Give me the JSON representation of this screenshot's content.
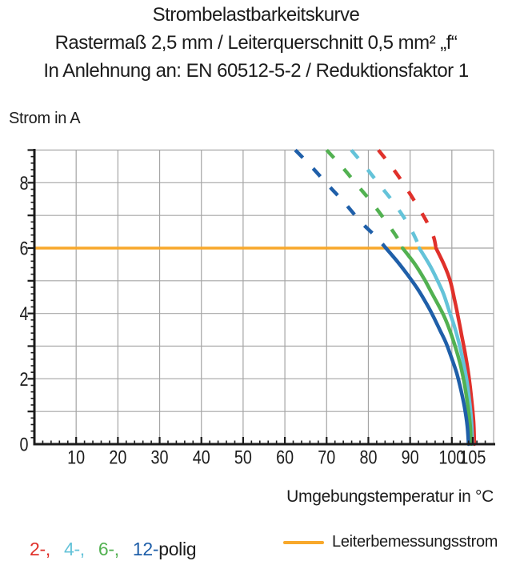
{
  "header": {
    "line1": "Strombelastbarkeitskurve",
    "line2": "Rastermaß 2,5 mm / Leiterquerschnitt 0,5 mm² „f“",
    "line3": "In Anlehnung an: EN 60512-5-2 / Reduktionsfaktor 1"
  },
  "chart_data": {
    "type": "line",
    "title": "Strombelastbarkeitskurve",
    "subtitle": "Rastermaß 2,5 mm / Leiterquerschnitt 0,5 mm² „f“",
    "subtitle2": "In Anlehnung an: EN 60512-5-2 / Reduktionsfaktor 1",
    "ylabel": "Strom in A",
    "xlabel": "Umgebungstemperatur in °C",
    "xlim": [
      0,
      110
    ],
    "ylim": [
      0,
      9
    ],
    "x_tick_labels": [
      10,
      20,
      30,
      40,
      50,
      60,
      70,
      80,
      90,
      100,
      105
    ],
    "y_tick_labels": [
      0,
      2,
      4,
      6,
      8
    ],
    "x_major_ticks": [
      10,
      20,
      30,
      40,
      50,
      60,
      70,
      80,
      90,
      100,
      105
    ],
    "x_minor_step": 2,
    "y_major_step": 1,
    "y_minor_step": 0.2,
    "grid": true,
    "colors": {
      "grid": "#a5a5a5",
      "axis": "#1b1b1b",
      "text": "#1c1c1c"
    },
    "rated_current": {
      "label": "Leiterbemessungsstrom",
      "value_a": 6,
      "x_start": 0,
      "x_end": 96.3,
      "color": "#F8A82B"
    },
    "series": [
      {
        "name": "2-polig",
        "poles": 2,
        "color": "#E0312B",
        "dashed": [
          [
            82.4,
            9
          ],
          [
            85.2,
            8.55
          ],
          [
            88,
            8.05
          ],
          [
            91,
            7.45
          ],
          [
            93.8,
            6.85
          ],
          [
            95.6,
            6.35
          ],
          [
            96.2,
            6
          ]
        ],
        "solid": [
          [
            96.2,
            6
          ],
          [
            98.1,
            5.5
          ],
          [
            99.6,
            5.0
          ],
          [
            100.6,
            4.45
          ],
          [
            101.5,
            3.9
          ],
          [
            102.4,
            3.3
          ],
          [
            103.3,
            2.7
          ],
          [
            104.1,
            2.05
          ],
          [
            104.7,
            1.4
          ],
          [
            105.2,
            0.7
          ],
          [
            105.4,
            0
          ]
        ]
      },
      {
        "name": "4-polig",
        "poles": 4,
        "color": "#64C3D9",
        "dashed": [
          [
            75.9,
            9
          ],
          [
            79.2,
            8.5
          ],
          [
            82.6,
            7.95
          ],
          [
            86,
            7.4
          ],
          [
            89.2,
            6.8
          ],
          [
            91.3,
            6.3
          ],
          [
            92.2,
            6
          ]
        ],
        "solid": [
          [
            92.2,
            6
          ],
          [
            94.6,
            5.5
          ],
          [
            96.4,
            5.05
          ],
          [
            98,
            4.6
          ],
          [
            99.3,
            4.1
          ],
          [
            100.5,
            3.65
          ],
          [
            101.6,
            3.15
          ],
          [
            102.6,
            2.6
          ],
          [
            103.5,
            2.0
          ],
          [
            104.2,
            1.35
          ],
          [
            104.7,
            0.7
          ],
          [
            104.9,
            0
          ]
        ]
      },
      {
        "name": "6-polig",
        "poles": 6,
        "color": "#52B151",
        "dashed": [
          [
            70,
            9
          ],
          [
            73.6,
            8.5
          ],
          [
            77.2,
            7.95
          ],
          [
            80.8,
            7.4
          ],
          [
            84.3,
            6.8
          ],
          [
            87,
            6.3
          ],
          [
            88.2,
            6
          ]
        ],
        "solid": [
          [
            88.2,
            6
          ],
          [
            91.2,
            5.5
          ],
          [
            93.4,
            5.05
          ],
          [
            95.3,
            4.6
          ],
          [
            96.8,
            4.25
          ],
          [
            98.2,
            3.9
          ],
          [
            99.6,
            3.45
          ],
          [
            100.9,
            2.95
          ],
          [
            102,
            2.45
          ],
          [
            103,
            1.85
          ],
          [
            103.8,
            1.2
          ],
          [
            104.4,
            0.55
          ],
          [
            104.6,
            0
          ]
        ]
      },
      {
        "name": "12-polig",
        "poles": 12,
        "color": "#1F5FA9",
        "dashed": [
          [
            62.5,
            9
          ],
          [
            66.3,
            8.5
          ],
          [
            70.2,
            7.95
          ],
          [
            74.2,
            7.4
          ],
          [
            78.2,
            6.8
          ],
          [
            81.8,
            6.35
          ],
          [
            84.2,
            6
          ]
        ],
        "solid": [
          [
            84.2,
            6
          ],
          [
            87.2,
            5.55
          ],
          [
            89.6,
            5.15
          ],
          [
            91.8,
            4.75
          ],
          [
            93.7,
            4.35
          ],
          [
            95.4,
            3.95
          ],
          [
            97.1,
            3.5
          ],
          [
            98.6,
            3.1
          ],
          [
            99.9,
            2.65
          ],
          [
            101.1,
            2.2
          ],
          [
            102.1,
            1.7
          ],
          [
            103,
            1.15
          ],
          [
            103.7,
            0.55
          ],
          [
            104,
            0
          ]
        ]
      }
    ]
  },
  "legend": {
    "pole_items": [
      {
        "label": "2-,",
        "color": "#E0312B"
      },
      {
        "label": "4-,",
        "color": "#64C3D9"
      },
      {
        "label": "6-,",
        "color": "#52B151"
      },
      {
        "label": "12-",
        "color": "#1F5FA9"
      }
    ],
    "suffix": "polig"
  }
}
